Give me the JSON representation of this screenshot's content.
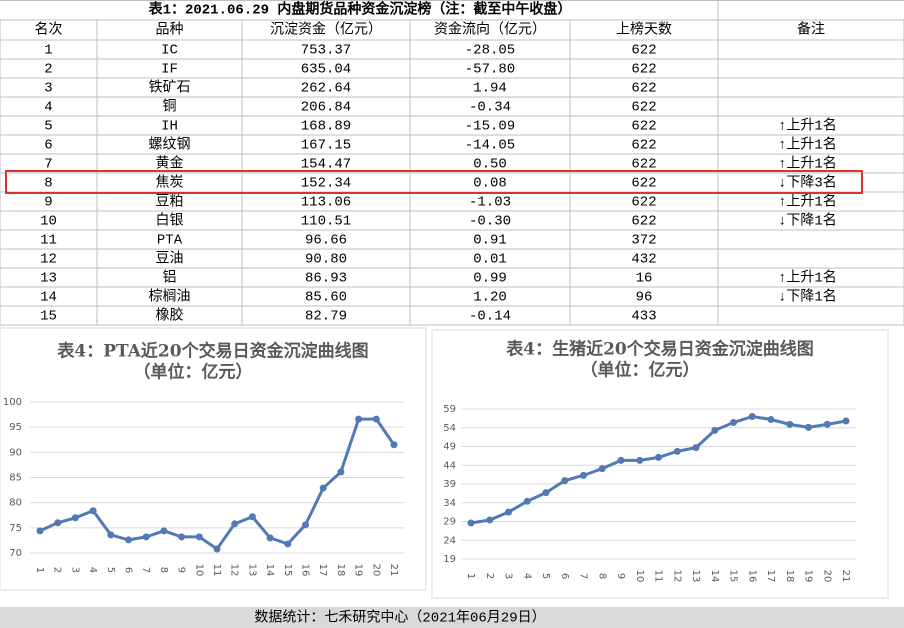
{
  "table": {
    "title": "表1：2021.06.29 内盘期货品种资金沉淀榜（注：截至中午收盘）",
    "header": [
      "名次",
      "品种",
      "沉淀资金（亿元）",
      "资金流向（亿元）",
      "上榜天数",
      "备注"
    ],
    "rows": [
      [
        "1",
        "IC",
        "753.37",
        "-28.05",
        "622",
        ""
      ],
      [
        "2",
        "IF",
        "635.04",
        "-57.80",
        "622",
        ""
      ],
      [
        "3",
        "铁矿石",
        "262.64",
        "1.94",
        "622",
        ""
      ],
      [
        "4",
        "铜",
        "206.84",
        "-0.34",
        "622",
        ""
      ],
      [
        "5",
        "IH",
        "168.89",
        "-15.09",
        "622",
        "↑上升1名"
      ],
      [
        "6",
        "螺纹钢",
        "167.15",
        "-14.05",
        "622",
        "↑上升1名"
      ],
      [
        "7",
        "黄金",
        "154.47",
        "0.50",
        "622",
        "↑上升1名"
      ],
      [
        "8",
        "焦炭",
        "152.34",
        "0.08",
        "622",
        "↓下降3名"
      ],
      [
        "9",
        "豆粕",
        "113.06",
        "-1.03",
        "622",
        "↑上升1名"
      ],
      [
        "10",
        "白银",
        "110.51",
        "-0.30",
        "622",
        "↓下降1名"
      ],
      [
        "11",
        "PTA",
        "96.66",
        "0.91",
        "372",
        ""
      ],
      [
        "12",
        "豆油",
        "90.80",
        "0.01",
        "432",
        ""
      ],
      [
        "13",
        "铝",
        "86.93",
        "0.99",
        "16",
        "↑上升1名"
      ],
      [
        "14",
        "棕榈油",
        "85.60",
        "1.20",
        "96",
        "↓下降1名"
      ],
      [
        "15",
        "橡胶",
        "82.79",
        "-0.14",
        "433",
        ""
      ]
    ]
  },
  "chart_data": [
    {
      "type": "line",
      "title": "表4：PTA近20个交易日资金沉淀曲线图",
      "subtitle": "（单位：亿元）",
      "categories": [
        "1",
        "2",
        "3",
        "4",
        "5",
        "6",
        "7",
        "8",
        "9",
        "10",
        "11",
        "12",
        "13",
        "14",
        "15",
        "16",
        "17",
        "18",
        "19",
        "20",
        "21"
      ],
      "values": [
        74.4,
        76.0,
        77.0,
        78.4,
        73.6,
        72.6,
        73.2,
        74.4,
        73.2,
        73.2,
        70.8,
        75.8,
        77.2,
        73.0,
        71.8,
        75.6,
        82.9,
        86.1,
        96.6,
        96.6,
        91.5
      ],
      "color": "#5279b1",
      "ylim": [
        70,
        100
      ],
      "yticks": [
        70,
        75,
        80,
        85,
        90,
        95,
        100
      ],
      "grid": true
    },
    {
      "type": "line",
      "title": "表4：生猪近20个交易日资金沉淀曲线图",
      "subtitle": "（单位：亿元）",
      "categories": [
        "1",
        "2",
        "3",
        "4",
        "5",
        "6",
        "7",
        "8",
        "9",
        "10",
        "11",
        "12",
        "13",
        "14",
        "15",
        "16",
        "17",
        "18",
        "19",
        "20",
        "21"
      ],
      "values": [
        28.6,
        29.4,
        31.5,
        34.4,
        36.7,
        39.9,
        41.3,
        43.1,
        45.3,
        45.3,
        46.1,
        47.7,
        48.7,
        53.3,
        55.4,
        57.0,
        56.2,
        54.9,
        54.1,
        54.9,
        55.8
      ],
      "color": "#5279b1",
      "ylim": [
        19,
        59
      ],
      "yticks": [
        19,
        24,
        29,
        34,
        39,
        44,
        49,
        54,
        59
      ],
      "grid": true
    }
  ],
  "footer": "数据统计：七禾研究中心（2021年06月29日）"
}
